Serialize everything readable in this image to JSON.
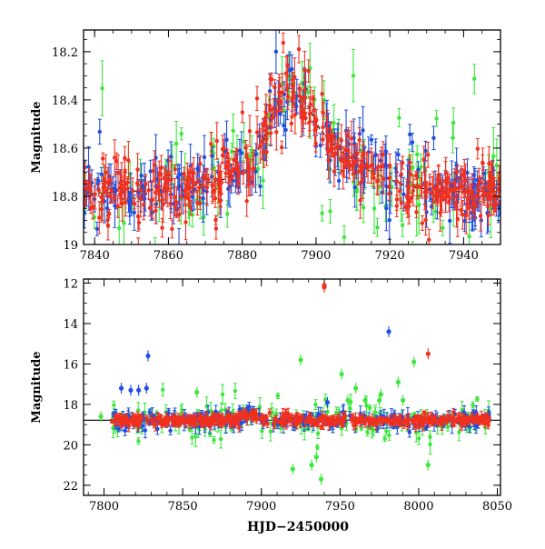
{
  "figure": {
    "xlabel": "HJD−2450000"
  },
  "series_colors": {
    "blue": "#1f4fe0",
    "green": "#3ce83c",
    "red": "#f0301e",
    "model": "#000000"
  },
  "chart_data": [
    {
      "type": "scatter",
      "panel": "top",
      "ylabel": "Magnitude",
      "xlim": [
        7837,
        7950
      ],
      "ylim": [
        19.0,
        18.11
      ],
      "y_inverted": true,
      "x_ticks": [
        7840,
        7860,
        7880,
        7900,
        7920,
        7940
      ],
      "y_ticks": [
        18.2,
        18.4,
        18.6,
        18.8,
        19
      ],
      "y_tick_labels": [
        "18.2",
        "18.4",
        "18.6",
        "18.8",
        "19"
      ],
      "model_curve": {
        "x": [
          7837,
          7850,
          7865,
          7875,
          7882,
          7886,
          7889,
          7892,
          7895,
          7898,
          7901,
          7905,
          7910,
          7915,
          7920,
          7925,
          7930,
          7935,
          7940,
          7950
        ],
        "y": [
          18.79,
          18.78,
          18.76,
          18.73,
          18.68,
          18.55,
          18.42,
          18.36,
          18.37,
          18.43,
          18.52,
          18.59,
          18.65,
          18.7,
          18.73,
          18.76,
          18.77,
          18.78,
          18.78,
          18.78
        ]
      },
      "series": [
        {
          "color": "blue",
          "typical_error": 0.05
        },
        {
          "color": "green",
          "typical_error": 0.06
        },
        {
          "color": "red",
          "typical_error": 0.04
        }
      ]
    },
    {
      "type": "scatter",
      "panel": "bottom",
      "ylabel": "Magnitude",
      "xlabel": "HJD−2450000",
      "xlim": [
        7787,
        8052
      ],
      "ylim": [
        22.5,
        11.8
      ],
      "y_inverted": true,
      "x_ticks": [
        7800,
        7850,
        7900,
        7950,
        8000,
        8050
      ],
      "y_ticks": [
        12,
        14,
        16,
        18,
        20,
        22
      ],
      "baseline_mag": 18.78,
      "outliers": [
        {
          "color": "blue",
          "x": [
            7811,
            7817,
            7822,
            7827,
            7828,
            7981,
            7942
          ],
          "y": [
            17.2,
            17.3,
            17.3,
            17.2,
            15.6,
            14.4,
            17.9
          ]
        },
        {
          "color": "green",
          "x": [
            7798,
            7859,
            7925,
            7938,
            7951,
            7955,
            7960,
            7966,
            7976,
            7987,
            7990,
            7997,
            8006,
            7920,
            7932,
            7975,
            7935
          ],
          "y": [
            18.6,
            17.4,
            15.8,
            21.7,
            16.5,
            17.8,
            17.2,
            17.8,
            17.5,
            16.9,
            17.8,
            15.9,
            21.0,
            21.2,
            21.0,
            17.8,
            20.6
          ]
        },
        {
          "color": "red",
          "x": [
            7940,
            7940,
            8006
          ],
          "y": [
            12.1,
            12.2,
            15.5
          ]
        }
      ]
    }
  ]
}
